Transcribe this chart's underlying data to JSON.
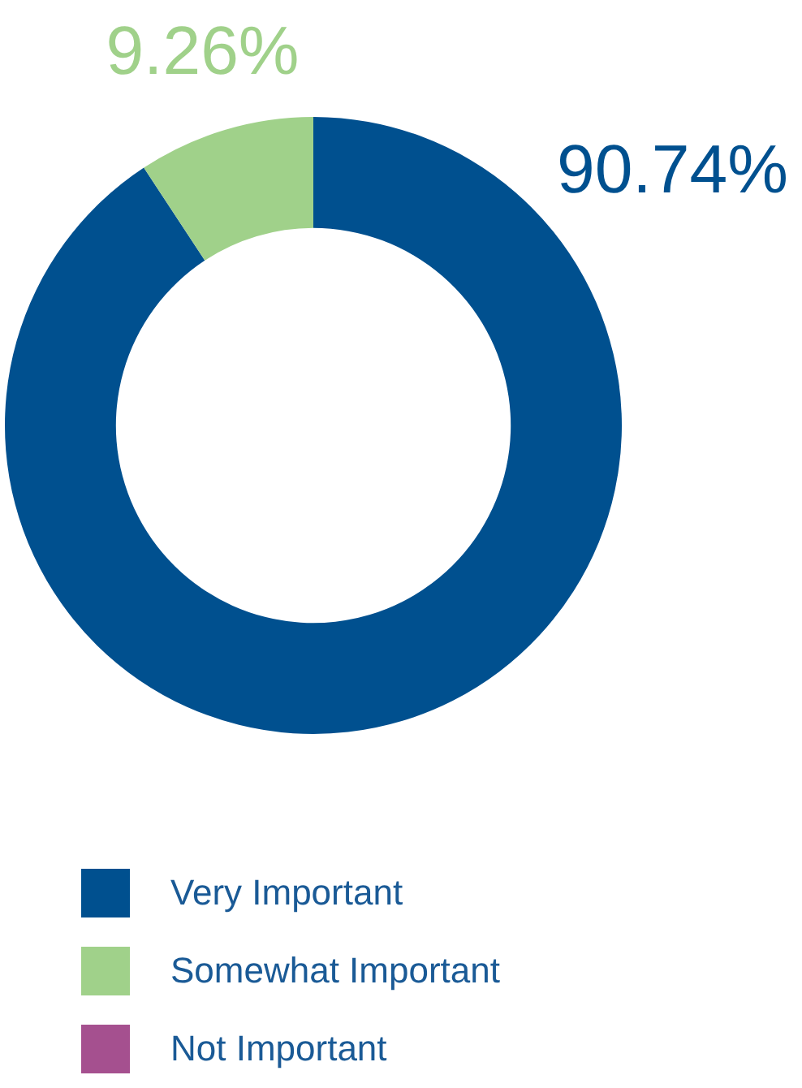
{
  "chart_data": {
    "type": "donut",
    "categories": [
      "Very Important",
      "Somewhat Important",
      "Not Important"
    ],
    "values": [
      90.74,
      9.26,
      0
    ],
    "colors": [
      "#00508f",
      "#a0d18a",
      "#a5508f"
    ],
    "value_labels": [
      "90.74%",
      "9.26%",
      null
    ],
    "legend": "bottom left"
  }
}
